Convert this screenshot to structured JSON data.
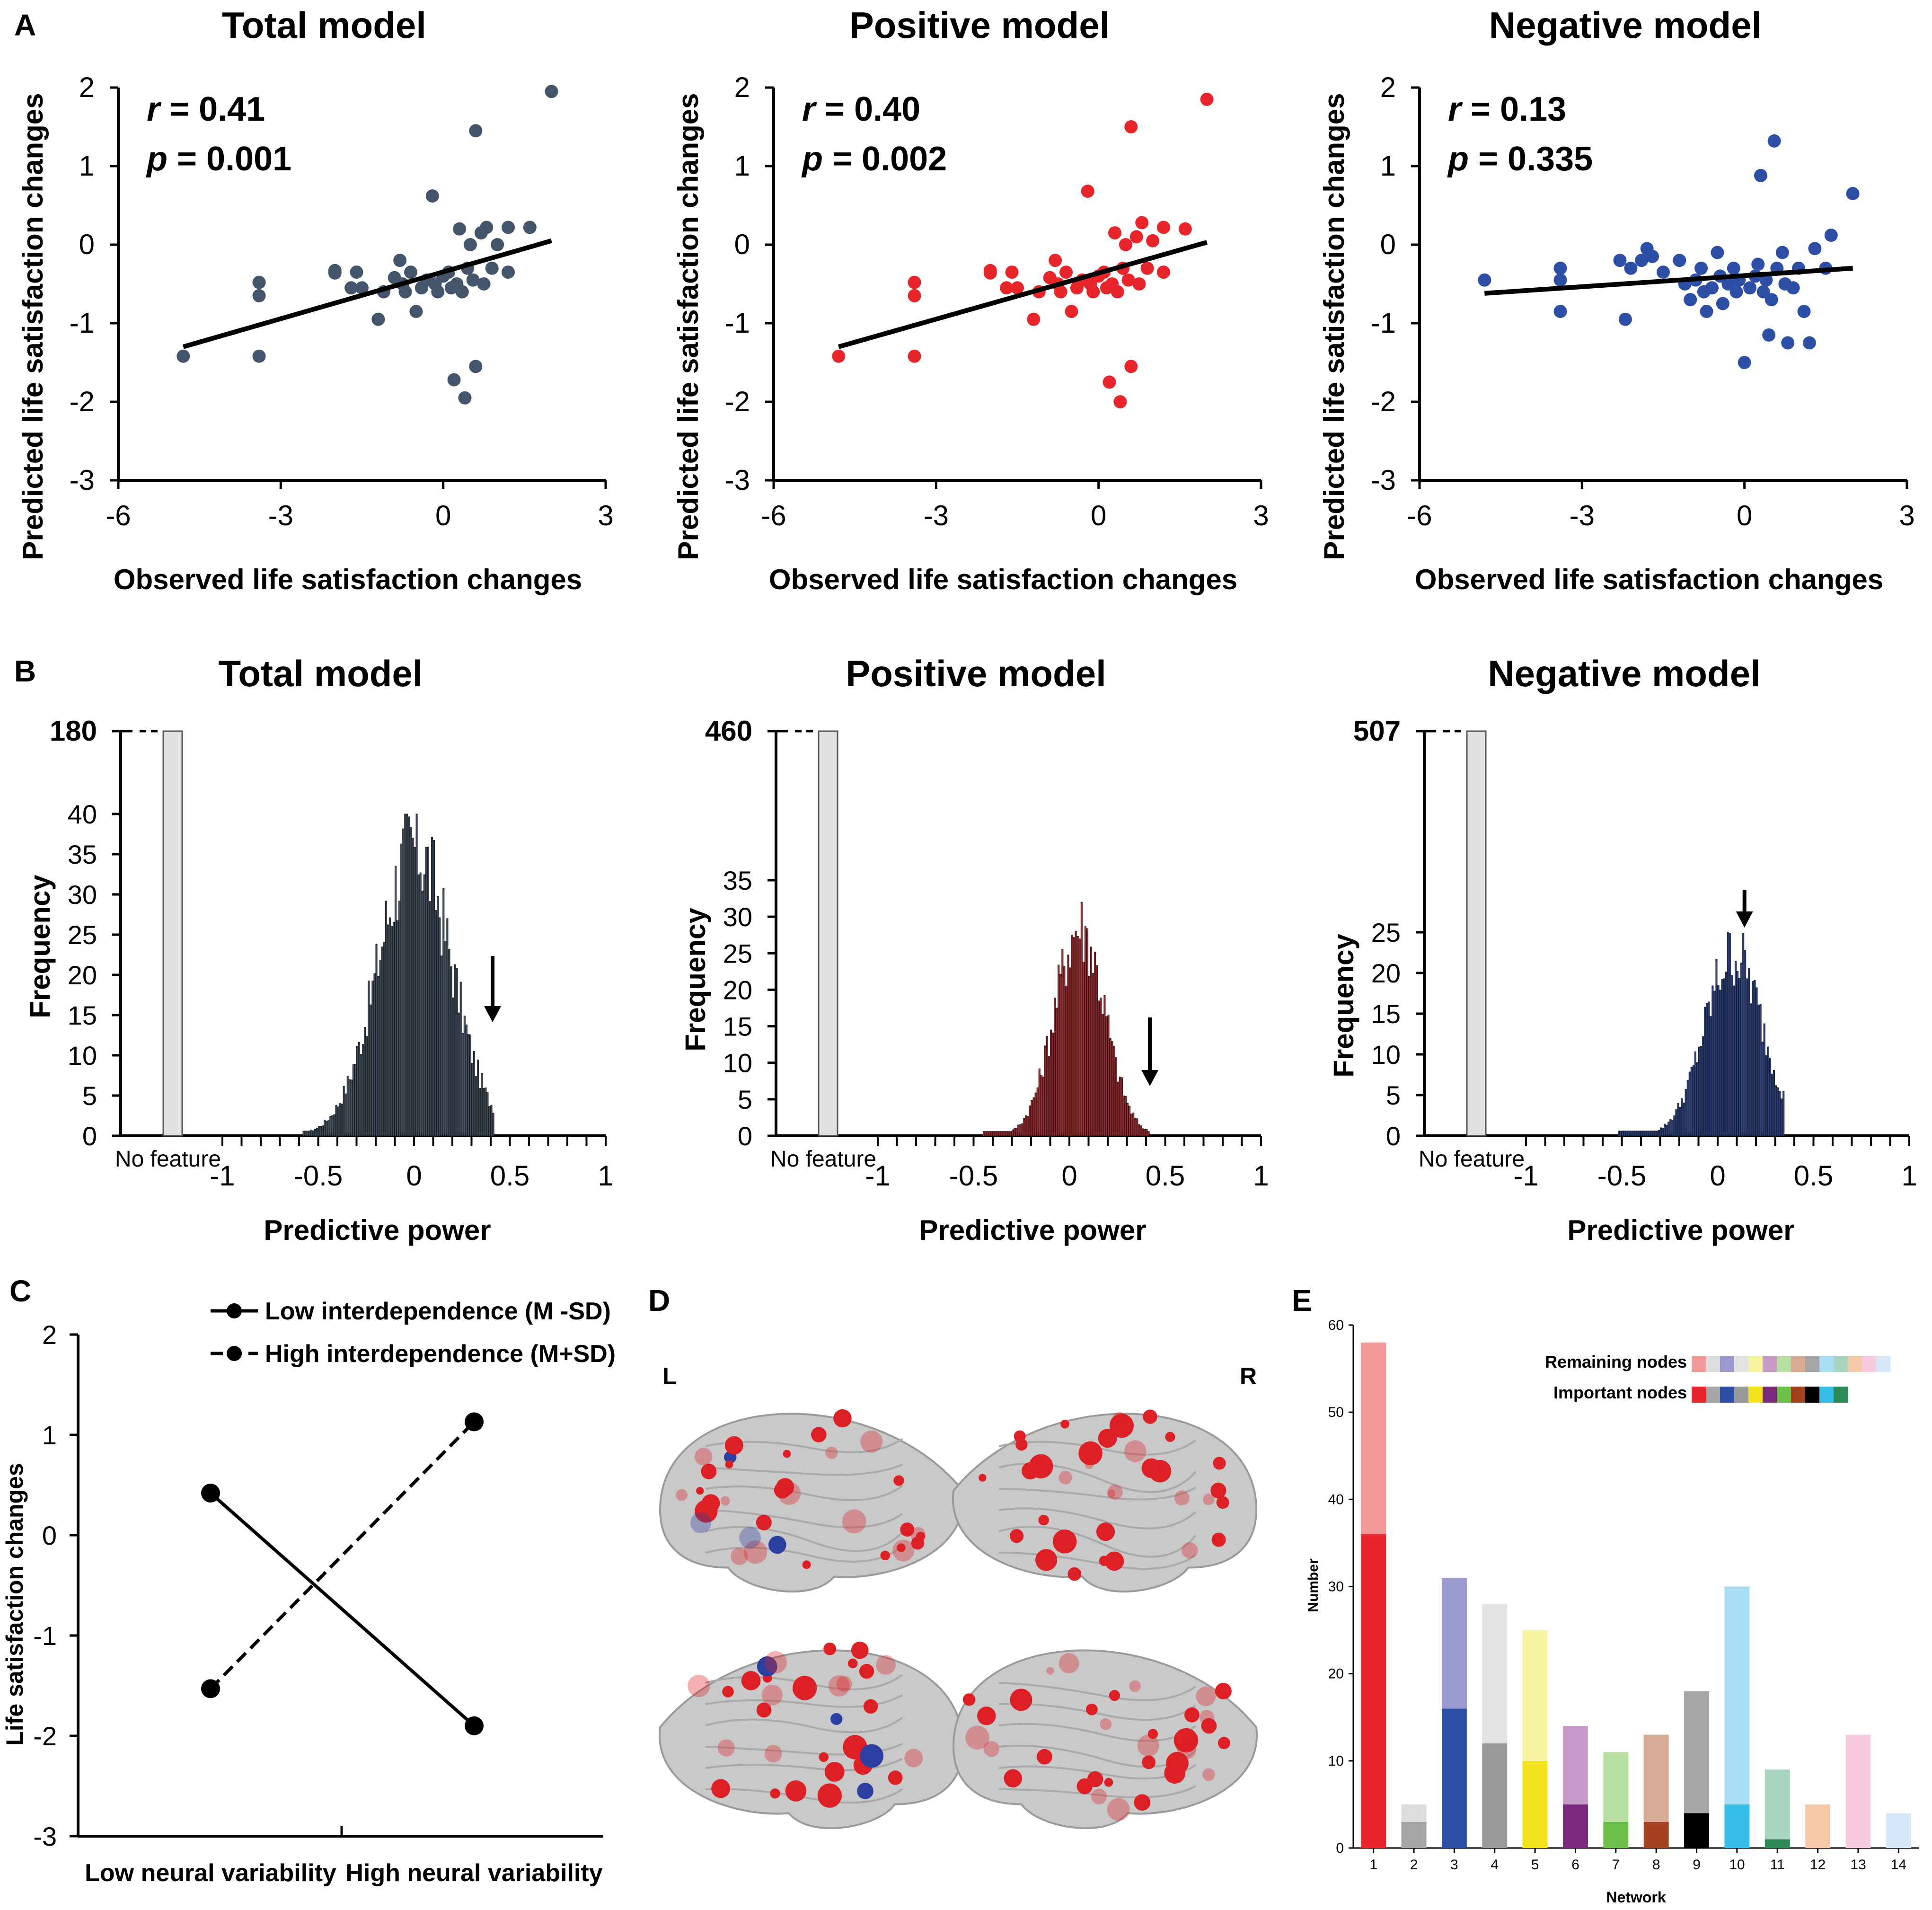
{
  "colors": {
    "axis": "#000000",
    "total_points": "#44546a",
    "positive_points": "#e8252b",
    "negative_points": "#2e4fa6",
    "total_hist": "#3e4f63",
    "positive_hist": "#b52025",
    "negative_hist": "#233f8f",
    "no_feature_bar": "#e2e2e2",
    "brain": "#c9c9c9",
    "node_positive": "#dd1f26",
    "node_negative": "#2b3fa0"
  },
  "panels": {
    "A": "A",
    "B": "B",
    "C": "C",
    "D": "D",
    "E": "E"
  },
  "chart_data": [
    {
      "id": "A1",
      "type": "scatter",
      "panel": "A",
      "title": "Total model",
      "xlabel": "Observed life satisfaction changes",
      "ylabel": "Predicted life satisfaction changes",
      "xlim": [
        -6,
        3
      ],
      "ylim": [
        -3,
        2
      ],
      "xticks": [
        "-6",
        "-3",
        "0",
        "3"
      ],
      "yticks": [
        "-3",
        "-2",
        "-1",
        "0",
        "1",
        "2"
      ],
      "stat_r_label": "r",
      "stat_r_value": " = 0.41",
      "stat_p_label": "p",
      "stat_p_value": " = 0.001",
      "fit": [
        [
          -4.8,
          -1.3
        ],
        [
          2.0,
          0.05
        ]
      ],
      "points": [
        [
          -4.8,
          -1.42
        ],
        [
          -3.4,
          -0.48
        ],
        [
          -3.4,
          -0.65
        ],
        [
          -3.4,
          -1.42
        ],
        [
          -2.0,
          -0.33
        ],
        [
          -2.0,
          -0.36
        ],
        [
          -1.7,
          -0.55
        ],
        [
          -1.6,
          -0.35
        ],
        [
          -1.5,
          -0.55
        ],
        [
          -1.2,
          -0.95
        ],
        [
          -1.1,
          -0.6
        ],
        [
          -0.9,
          -0.42
        ],
        [
          -0.8,
          -0.2
        ],
        [
          -0.75,
          -0.5
        ],
        [
          -0.7,
          -0.6
        ],
        [
          -0.6,
          -0.35
        ],
        [
          -0.5,
          -0.85
        ],
        [
          -0.4,
          -0.55
        ],
        [
          -0.3,
          -0.45
        ],
        [
          -0.2,
          0.62
        ],
        [
          -0.15,
          -0.5
        ],
        [
          -0.1,
          -0.6
        ],
        [
          0.0,
          -0.4
        ],
        [
          0.1,
          -0.35
        ],
        [
          0.15,
          -0.55
        ],
        [
          0.2,
          -1.72
        ],
        [
          0.25,
          -0.5
        ],
        [
          0.3,
          0.2
        ],
        [
          0.35,
          -0.6
        ],
        [
          0.4,
          -1.95
        ],
        [
          0.45,
          -0.3
        ],
        [
          0.5,
          0.0
        ],
        [
          0.55,
          -0.45
        ],
        [
          0.6,
          1.45
        ],
        [
          0.6,
          -1.55
        ],
        [
          0.7,
          0.15
        ],
        [
          0.75,
          -0.5
        ],
        [
          0.8,
          0.22
        ],
        [
          0.9,
          -0.3
        ],
        [
          1.0,
          0.0
        ],
        [
          1.2,
          0.22
        ],
        [
          1.2,
          -0.35
        ],
        [
          1.6,
          0.22
        ],
        [
          2.0,
          1.95
        ]
      ]
    },
    {
      "id": "A2",
      "type": "scatter",
      "panel": "A",
      "title": "Positive model",
      "xlabel": "Observed life satisfaction changes",
      "ylabel": "Predicted life satisfaction changes",
      "xlim": [
        -6,
        3
      ],
      "ylim": [
        -3,
        2
      ],
      "xticks": [
        "-6",
        "-3",
        "0",
        "3"
      ],
      "yticks": [
        "-3",
        "-2",
        "-1",
        "0",
        "1",
        "2"
      ],
      "stat_r_label": "r",
      "stat_r_value": " = 0.40",
      "stat_p_label": "p",
      "stat_p_value": " = 0.002",
      "fit": [
        [
          -4.8,
          -1.3
        ],
        [
          2.0,
          0.03
        ]
      ],
      "points": [
        [
          -4.8,
          -1.42
        ],
        [
          -3.4,
          -0.48
        ],
        [
          -3.4,
          -0.65
        ],
        [
          -3.4,
          -1.42
        ],
        [
          -2.0,
          -0.33
        ],
        [
          -2.0,
          -0.36
        ],
        [
          -1.7,
          -0.55
        ],
        [
          -1.6,
          -0.35
        ],
        [
          -1.5,
          -0.55
        ],
        [
          -1.2,
          -0.95
        ],
        [
          -1.1,
          -0.6
        ],
        [
          -0.9,
          -0.42
        ],
        [
          -0.8,
          -0.2
        ],
        [
          -0.75,
          -0.5
        ],
        [
          -0.7,
          -0.6
        ],
        [
          -0.6,
          -0.35
        ],
        [
          -0.5,
          -0.85
        ],
        [
          -0.4,
          -0.55
        ],
        [
          -0.3,
          -0.45
        ],
        [
          -0.2,
          0.68
        ],
        [
          -0.15,
          -0.5
        ],
        [
          -0.1,
          -0.6
        ],
        [
          0.0,
          -0.4
        ],
        [
          0.1,
          -0.35
        ],
        [
          0.15,
          -0.55
        ],
        [
          0.2,
          -1.75
        ],
        [
          0.25,
          -0.5
        ],
        [
          0.3,
          0.15
        ],
        [
          0.35,
          -0.6
        ],
        [
          0.4,
          -2.0
        ],
        [
          0.45,
          -0.3
        ],
        [
          0.5,
          0.0
        ],
        [
          0.55,
          -0.45
        ],
        [
          0.6,
          1.5
        ],
        [
          0.6,
          -1.55
        ],
        [
          0.7,
          0.1
        ],
        [
          0.75,
          -0.5
        ],
        [
          0.8,
          0.28
        ],
        [
          0.9,
          -0.3
        ],
        [
          1.0,
          0.05
        ],
        [
          1.2,
          0.22
        ],
        [
          1.2,
          -0.35
        ],
        [
          1.6,
          0.2
        ],
        [
          2.0,
          1.85
        ]
      ]
    },
    {
      "id": "A3",
      "type": "scatter",
      "panel": "A",
      "title": "Negative model",
      "xlabel": "Observed life satisfaction changes",
      "ylabel": "Predicted life satisfaction changes",
      "xlim": [
        -6,
        3
      ],
      "ylim": [
        -3,
        2
      ],
      "xticks": [
        "-6",
        "-3",
        "0",
        "3"
      ],
      "yticks": [
        "-3",
        "-2",
        "-1",
        "0",
        "1",
        "2"
      ],
      "stat_r_label": "r",
      "stat_r_value": " = 0.13",
      "stat_p_label": "p",
      "stat_p_value": " = 0.335",
      "fit": [
        [
          -4.8,
          -0.62
        ],
        [
          2.0,
          -0.3
        ]
      ],
      "points": [
        [
          -4.8,
          -0.45
        ],
        [
          -3.4,
          -0.3
        ],
        [
          -3.4,
          -0.45
        ],
        [
          -3.4,
          -0.85
        ],
        [
          -2.3,
          -0.2
        ],
        [
          -2.2,
          -0.95
        ],
        [
          -2.1,
          -0.3
        ],
        [
          -1.9,
          -0.2
        ],
        [
          -1.8,
          -0.05
        ],
        [
          -1.7,
          -0.15
        ],
        [
          -1.5,
          -0.35
        ],
        [
          -1.2,
          -0.2
        ],
        [
          -1.1,
          -0.5
        ],
        [
          -1.0,
          -0.7
        ],
        [
          -0.9,
          -0.45
        ],
        [
          -0.8,
          -0.3
        ],
        [
          -0.75,
          -0.6
        ],
        [
          -0.7,
          -0.85
        ],
        [
          -0.6,
          -0.55
        ],
        [
          -0.5,
          -0.1
        ],
        [
          -0.45,
          -0.4
        ],
        [
          -0.4,
          -0.75
        ],
        [
          -0.3,
          -0.5
        ],
        [
          -0.2,
          -0.3
        ],
        [
          -0.15,
          -0.6
        ],
        [
          -0.1,
          -0.45
        ],
        [
          0.0,
          -1.5
        ],
        [
          0.1,
          -0.55
        ],
        [
          0.2,
          -0.4
        ],
        [
          0.25,
          -0.25
        ],
        [
          0.3,
          0.88
        ],
        [
          0.35,
          -0.6
        ],
        [
          0.4,
          -0.45
        ],
        [
          0.45,
          -1.15
        ],
        [
          0.5,
          -0.7
        ],
        [
          0.55,
          1.32
        ],
        [
          0.6,
          -0.3
        ],
        [
          0.7,
          -0.1
        ],
        [
          0.75,
          -0.5
        ],
        [
          0.8,
          -1.25
        ],
        [
          0.9,
          -0.55
        ],
        [
          1.0,
          -0.3
        ],
        [
          1.1,
          -0.85
        ],
        [
          1.2,
          -1.25
        ],
        [
          1.3,
          -0.05
        ],
        [
          1.5,
          -0.3
        ],
        [
          1.6,
          0.12
        ],
        [
          2.0,
          0.65
        ]
      ]
    },
    {
      "id": "B1",
      "type": "bar",
      "panel": "B",
      "title": "Total model",
      "xlabel": "Predictive power",
      "ylabel": "Frequency",
      "xlim": [
        -1,
        1
      ],
      "ylim": [
        0,
        40
      ],
      "xticks": [
        "-1",
        "-0.5",
        "0",
        "0.5",
        "1"
      ],
      "yticks": [
        "0",
        "5",
        "10",
        "15",
        "20",
        "25",
        "30",
        "35",
        "40"
      ],
      "ybreak_label": "180",
      "no_feature_label": "No feature",
      "observed": 0.41,
      "hist_center": 0.0,
      "hist_spread": 0.19,
      "hist_peak": 40,
      "hist_range": [
        -0.58,
        0.42
      ]
    },
    {
      "id": "B2",
      "type": "bar",
      "panel": "B",
      "title": "Positive model",
      "xlabel": "Predictive power",
      "ylabel": "Frequency",
      "xlim": [
        -1,
        1
      ],
      "ylim": [
        0,
        35
      ],
      "xticks": [
        "-1",
        "-0.5",
        "0",
        "0.5",
        "1"
      ],
      "yticks": [
        "0",
        "5",
        "10",
        "15",
        "20",
        "25",
        "30",
        "35"
      ],
      "ybreak_label": "460",
      "no_feature_label": "No feature",
      "observed": 0.42,
      "hist_center": 0.05,
      "hist_spread": 0.13,
      "hist_peak": 32,
      "hist_range": [
        -0.45,
        0.42
      ]
    },
    {
      "id": "B3",
      "type": "bar",
      "panel": "B",
      "title": "Negative model",
      "xlabel": "Predictive power",
      "ylabel": "Frequency",
      "xlim": [
        -1,
        1
      ],
      "ylim": [
        0,
        25
      ],
      "xticks": [
        "-1",
        "-0.5",
        "0",
        "0.5",
        "1"
      ],
      "yticks": [
        "0",
        "5",
        "10",
        "15",
        "20",
        "25"
      ],
      "ybreak_label": "507",
      "no_feature_label": "No feature",
      "observed": 0.14,
      "hist_center": 0.08,
      "hist_spread": 0.15,
      "hist_peak": 25,
      "hist_range": [
        -0.52,
        0.35
      ]
    },
    {
      "id": "C",
      "type": "line",
      "panel": "C",
      "ylabel": "Life satisfaction changes",
      "categories": [
        "Low neural variability",
        "High neural variability"
      ],
      "ylim": [
        -3,
        2
      ],
      "yticks": [
        "-3",
        "-2",
        "-1",
        "0",
        "1",
        "2"
      ],
      "series": [
        {
          "name": "Low interdependence (M -SD)",
          "values": [
            0.42,
            -1.9
          ],
          "style": "solid"
        },
        {
          "name": "High interdependence (M+SD)",
          "values": [
            -1.53,
            1.13
          ],
          "style": "dashed"
        }
      ]
    },
    {
      "id": "E",
      "type": "bar",
      "panel": "E",
      "xlabel": "Network",
      "ylabel": "Number",
      "ylim": [
        0,
        60
      ],
      "yticks": [
        "0",
        "10",
        "20",
        "30",
        "40",
        "50",
        "60"
      ],
      "categories": [
        "1",
        "2",
        "3",
        "4",
        "5",
        "6",
        "7",
        "8",
        "9",
        "10",
        "11",
        "12",
        "13",
        "14"
      ],
      "legend": [
        "Remaining nodes",
        "Important nodes"
      ],
      "series": [
        {
          "name": "Important nodes",
          "values": [
            36,
            3,
            16,
            12,
            10,
            5,
            3,
            3,
            4,
            5,
            1,
            0,
            0,
            0
          ]
        },
        {
          "name": "Remaining nodes",
          "values": [
            22,
            2,
            15,
            16,
            15,
            9,
            8,
            10,
            14,
            25,
            8,
            5,
            13,
            4
          ]
        }
      ],
      "colors_important": [
        "#e8252b",
        "#a6a6a6",
        "#2e4fa6",
        "#9a9a9a",
        "#f2e31c",
        "#7b2a7d",
        "#6cc04a",
        "#a3401d",
        "#000000",
        "#35bfe8",
        "#2e8b57",
        "#f4b183",
        "#f8c8d8",
        "#d0e4f4"
      ],
      "colors_remaining": [
        "#f29999",
        "#dcdcdc",
        "#9b9ad0",
        "#e3e3e3",
        "#f7f3a3",
        "#c99bc9",
        "#b7dfa2",
        "#d8ab94",
        "#a6a6a6",
        "#a9def4",
        "#a8d5c0",
        "#f4c8a8",
        "#f8cce0",
        "#d6e8f7"
      ]
    }
  ],
  "panel_d": {
    "left_label": "L",
    "right_label": "R"
  }
}
